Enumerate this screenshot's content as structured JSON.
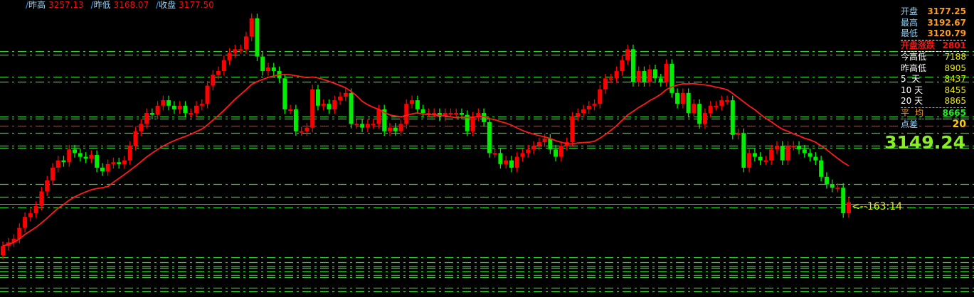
{
  "header": {
    "items": [
      {
        "label": "昨高",
        "value": "3257.13"
      },
      {
        "label": "昨低",
        "value": "3168.07"
      },
      {
        "label": "收盘",
        "value": "3177.50"
      }
    ]
  },
  "panel": {
    "open": {
      "label": "开盘",
      "value": "3177.25"
    },
    "high": {
      "label": "最高",
      "value": "3192.67"
    },
    "low": {
      "label": "最低",
      "value": "3120.79"
    },
    "open_change": {
      "label": "开盘涨跌",
      "value": "2801"
    },
    "rows": [
      {
        "label": "今高低",
        "value": "7188"
      },
      {
        "label": "昨高低",
        "value": "8905"
      },
      {
        "label": "5  天",
        "value": "8437"
      },
      {
        "label": "10 天",
        "value": "8455"
      },
      {
        "label": "20 天",
        "value": "8865"
      }
    ],
    "average": {
      "label": "平均",
      "value": "8665"
    },
    "spread": {
      "label": "点差",
      "value": "20"
    },
    "current_price": "3149.24",
    "countdown": "<--163:14"
  },
  "chart_data": {
    "type": "candlestick",
    "first_open": 3125,
    "closes": [
      3130,
      3132,
      3134,
      3140,
      3146,
      3148,
      3152,
      3160,
      3166,
      3173,
      3177,
      3176,
      3183,
      3181,
      3179,
      3178,
      3180,
      3173,
      3171,
      3175,
      3176,
      3175,
      3177,
      3185,
      3193,
      3197,
      3203,
      3202,
      3207,
      3210,
      3207,
      3205,
      3207,
      3203,
      3203,
      3207,
      3208,
      3218,
      3224,
      3226,
      3232,
      3236,
      3238,
      3238,
      3245,
      3255,
      3234,
      3226,
      3228,
      3226,
      3222,
      3205,
      3205,
      3193,
      3193,
      3195,
      3216,
      3207,
      3208,
      3205,
      3210,
      3212,
      3214,
      3197,
      3197,
      3195,
      3197,
      3197,
      3205,
      3193,
      3195,
      3193,
      3197,
      3208,
      3210,
      3205,
      3203,
      3203,
      3203,
      3201,
      3203,
      3203,
      3203,
      3202,
      3193,
      3201,
      3203,
      3198,
      3181,
      3181,
      3175,
      3177,
      3173,
      3179,
      3181,
      3183,
      3185,
      3187,
      3189,
      3183,
      3179,
      3185,
      3187,
      3201,
      3203,
      3205,
      3207,
      3208,
      3216,
      3222,
      3222,
      3226,
      3232,
      3238,
      3220,
      3226,
      3220,
      3227,
      3222,
      3220,
      3230,
      3214,
      3208,
      3214,
      3203,
      3208,
      3197,
      3203,
      3207,
      3207,
      3210,
      3210,
      3191,
      3192,
      3173,
      3181,
      3179,
      3177,
      3177,
      3183,
      3185,
      3177,
      3185,
      3185,
      3183,
      3181,
      3179,
      3177,
      3168,
      3164,
      3162,
      3162,
      3148,
      3154
    ],
    "moving_average_period": 20,
    "price_range": [
      3104,
      3265
    ],
    "levels": [
      {
        "price": 3237,
        "color": "#33cc33"
      },
      {
        "price": 3235,
        "color": "#33cc33"
      },
      {
        "price": 3223,
        "color": "#33cc33"
      },
      {
        "price": 3220,
        "color": "#33cc33"
      },
      {
        "price": 3201,
        "color": "#33cc33"
      },
      {
        "price": 3200,
        "color": "#33cc33"
      },
      {
        "price": 3196,
        "color": "#dd2222"
      },
      {
        "price": 3192,
        "color": "#33cc33"
      },
      {
        "price": 3185,
        "color": "#33cc33"
      },
      {
        "price": 3184,
        "color": "#33cc33"
      },
      {
        "price": 3164,
        "color": "#33cc33"
      },
      {
        "price": 3157,
        "color": "#33cc33"
      },
      {
        "price": 3151,
        "color": "#33cc33"
      },
      {
        "price": 3124,
        "color": "#33cc33"
      },
      {
        "price": 3121,
        "color": "#33cc33"
      },
      {
        "price": 3119,
        "color": "#33cc33"
      },
      {
        "price": 3118,
        "color": "#33cc33"
      },
      {
        "price": 3116,
        "color": "#33cc33"
      },
      {
        "price": 3114,
        "color": "#33cc33"
      },
      {
        "price": 3113,
        "color": "#33cc33"
      },
      {
        "price": 3107,
        "color": "#33cc33"
      },
      {
        "price": 3105,
        "color": "#33cc33"
      }
    ],
    "current_line": {
      "price": 3153,
      "color": "#8a90a0"
    },
    "colors": {
      "up": "#ff0000",
      "down": "#00ee00",
      "ma": "#ff1a1a"
    }
  }
}
